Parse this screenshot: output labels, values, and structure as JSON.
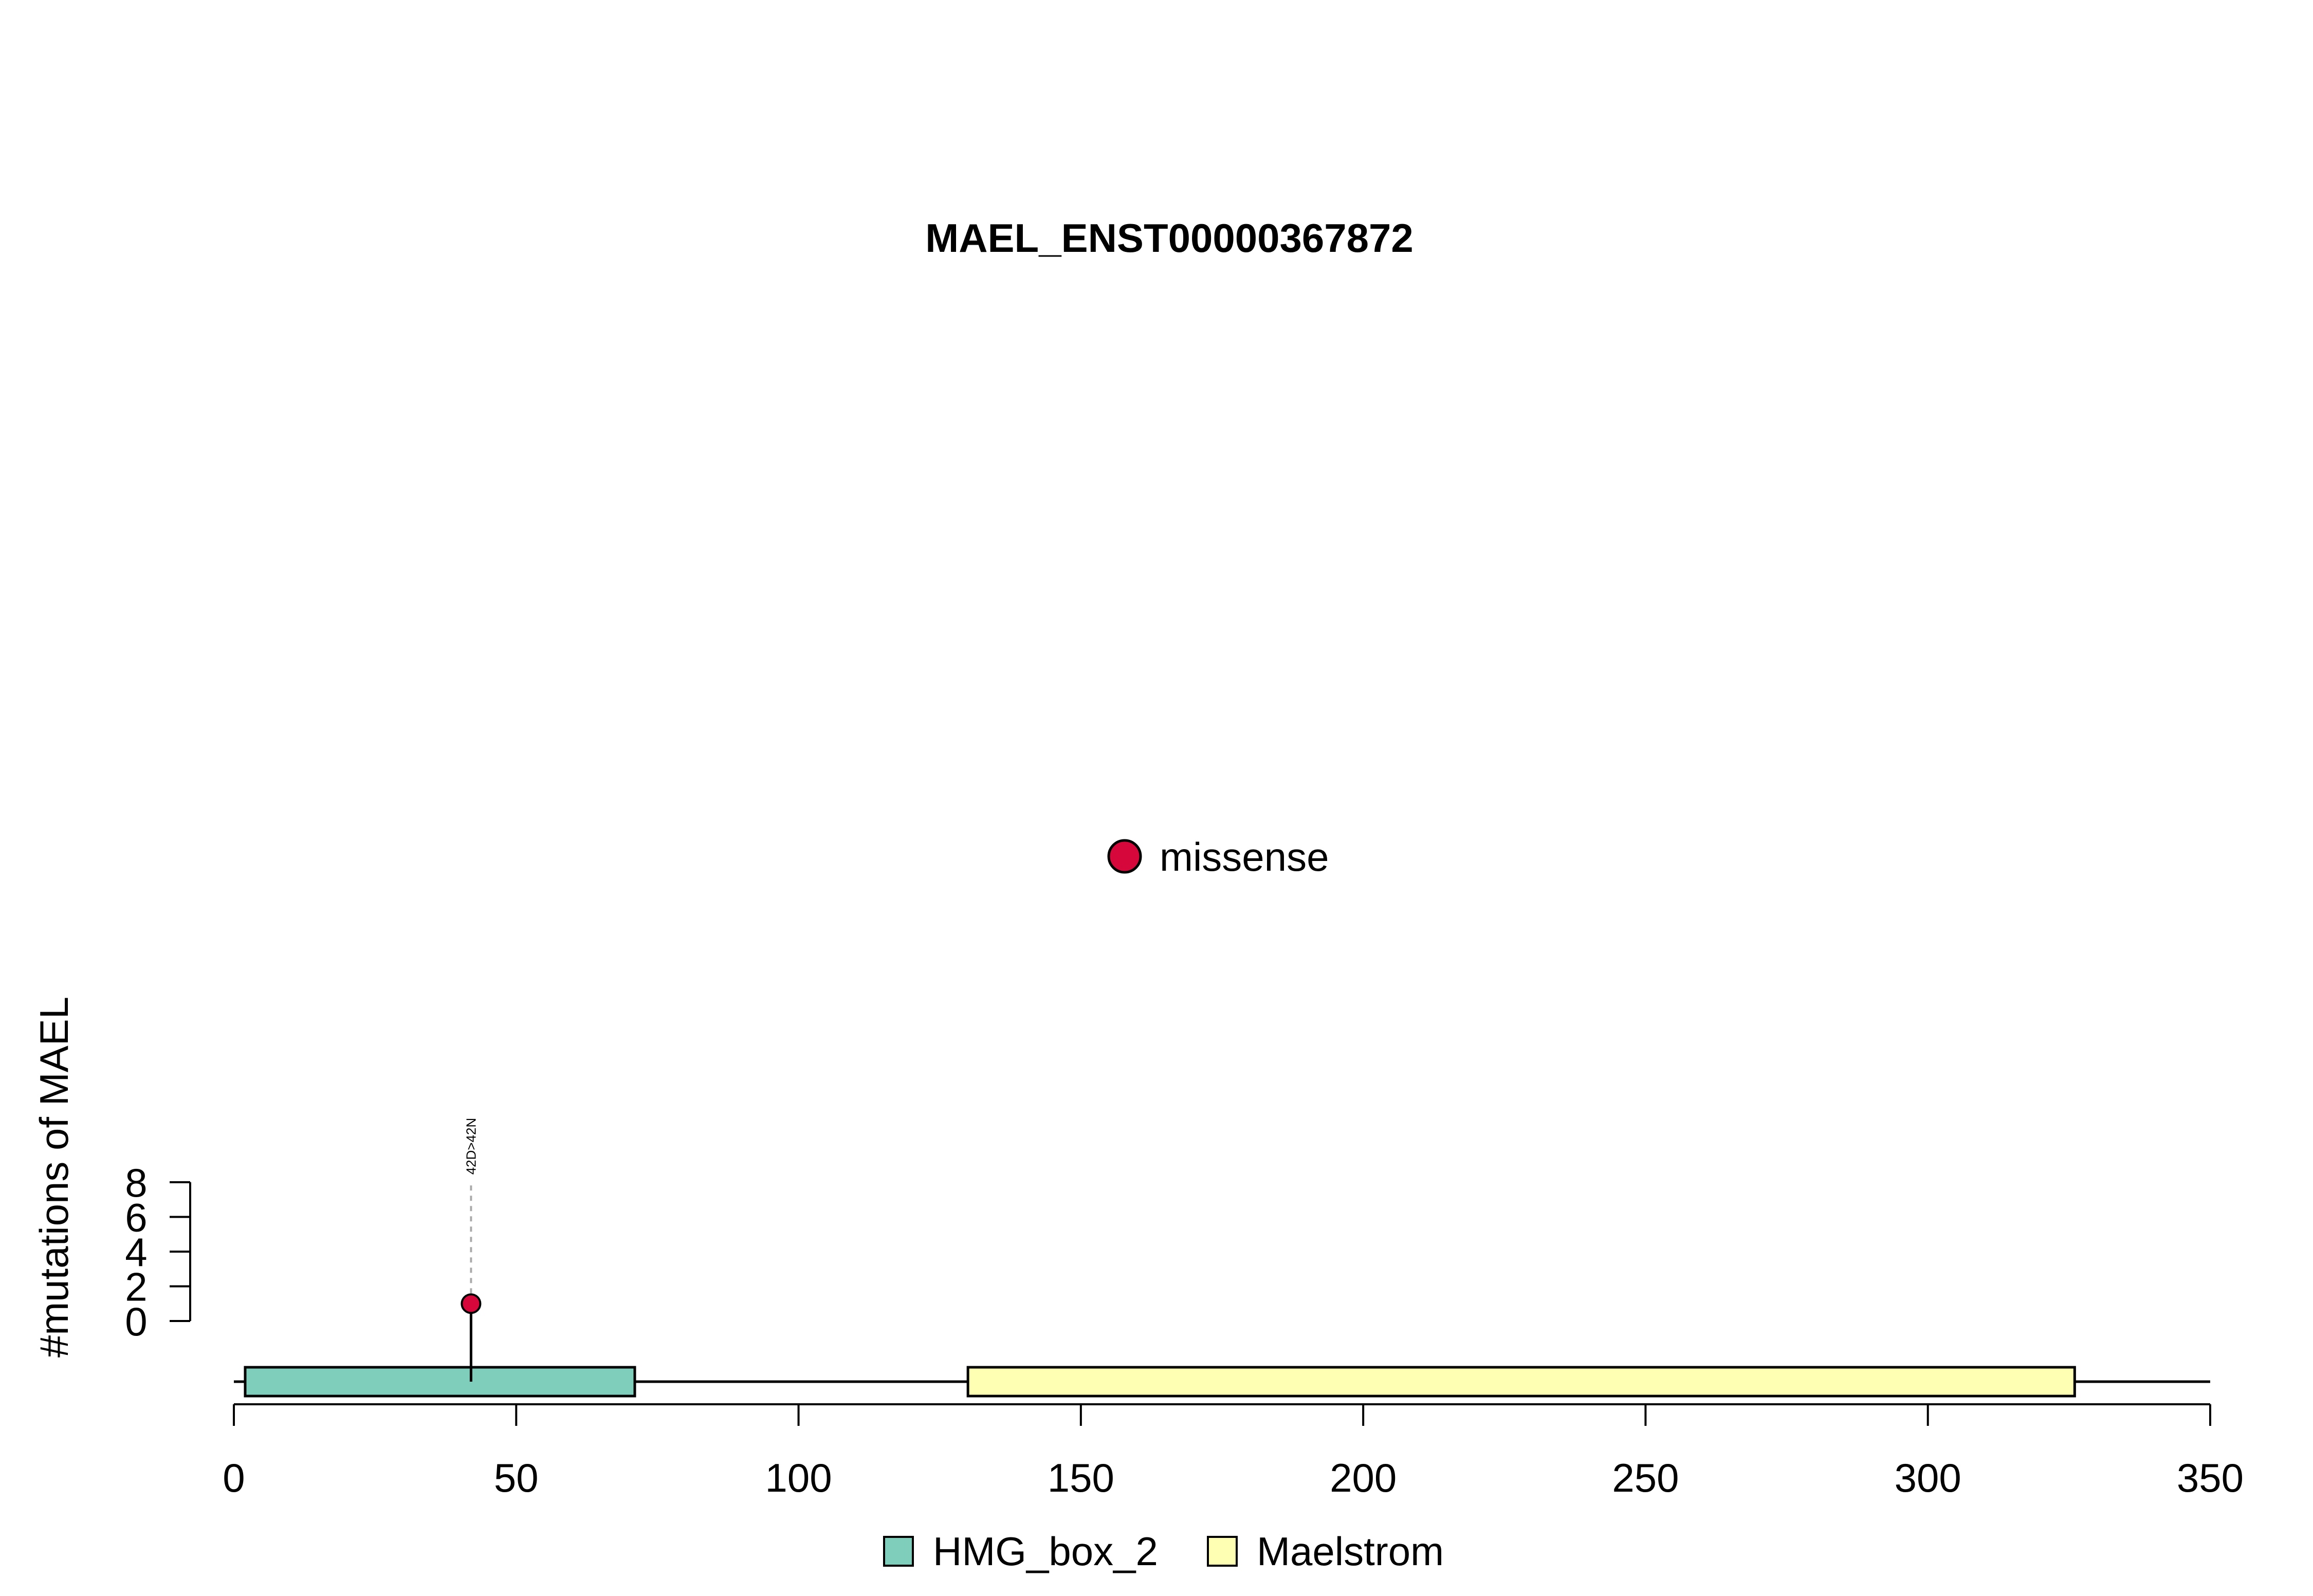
{
  "chart_data": {
    "type": "scatter",
    "title": "MAEL_ENST00000367872",
    "xlabel": "",
    "ylabel": "#mutations of MAEL",
    "xlim": [
      0,
      350
    ],
    "ylim": [
      0,
      8
    ],
    "x_ticks": [
      "0",
      "50",
      "100",
      "150",
      "200",
      "250",
      "300",
      "350"
    ],
    "y_ticks": [
      "0",
      "2",
      "4",
      "6",
      "8"
    ],
    "protein_length": 350,
    "domains": [
      {
        "name": "HMG_box_2",
        "start": 2,
        "end": 71,
        "color": "#7fcdbb"
      },
      {
        "name": "Maelstrom",
        "start": 130,
        "end": 326,
        "color": "#ffffb3"
      }
    ],
    "series": [
      {
        "name": "missense",
        "color": "#d6083b",
        "points": [
          {
            "x": 42,
            "y": 1,
            "label": "42D>42N"
          }
        ]
      }
    ],
    "legend_top": {
      "position": "center",
      "items": [
        "missense"
      ]
    },
    "legend_bottom": {
      "position": "bottom-center",
      "items": [
        "HMG_box_2",
        "Maelstrom"
      ]
    },
    "grid": false
  }
}
